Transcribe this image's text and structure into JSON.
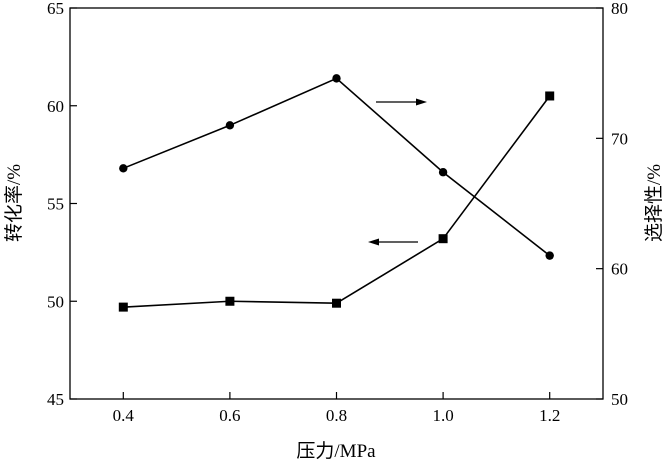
{
  "chart_data": {
    "type": "line",
    "title": "",
    "xlabel": "压力/MPa",
    "ylabel_left": "转化率/%",
    "ylabel_right": "选择性/%",
    "xlim": [
      0.3,
      1.3
    ],
    "ylim_left": [
      45,
      65
    ],
    "ylim_right": [
      50,
      80
    ],
    "x_ticks": [
      "0.4",
      "0.6",
      "0.8",
      "1.0",
      "1.2"
    ],
    "y_left_ticks": [
      "45",
      "50",
      "55",
      "60",
      "65"
    ],
    "y_right_ticks": [
      "50",
      "60",
      "70",
      "80"
    ],
    "grid": false,
    "series": [
      {
        "axis": "right",
        "marker": "circle",
        "x": [
          0.4,
          0.6,
          0.8,
          1.0,
          1.2
        ],
        "values": [
          67.7,
          71.0,
          74.6,
          67.4,
          61.0
        ]
      },
      {
        "axis": "left",
        "marker": "square",
        "x": [
          0.4,
          0.6,
          0.8,
          1.0,
          1.2
        ],
        "values": [
          49.7,
          50.0,
          49.9,
          53.2,
          60.5
        ]
      }
    ],
    "annotations": [
      {
        "type": "arrow",
        "direction": "right",
        "refers_to": "right-axis"
      },
      {
        "type": "arrow",
        "direction": "left",
        "refers_to": "left-axis"
      }
    ],
    "colors": {
      "line": "#000000",
      "background": "#ffffff"
    }
  }
}
